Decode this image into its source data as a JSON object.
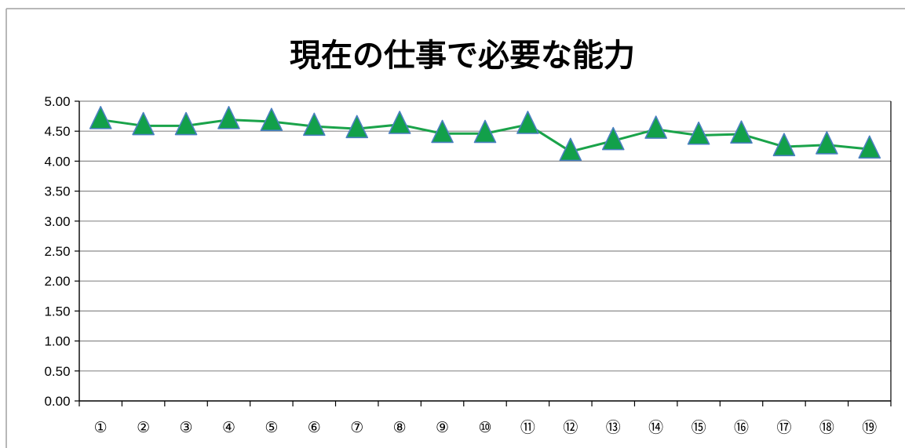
{
  "chart_data": {
    "type": "line",
    "title": "現在の仕事で必要な能力",
    "xlabel": "",
    "ylabel": "",
    "categories": [
      "①",
      "②",
      "③",
      "④",
      "⑤",
      "⑥",
      "⑦",
      "⑧",
      "⑨",
      "⑩",
      "⑪",
      "⑫",
      "⑬",
      "⑭",
      "⑮",
      "⑯",
      "⑰",
      "⑱",
      "⑲"
    ],
    "series": [
      {
        "values": [
          4.69,
          4.59,
          4.59,
          4.69,
          4.66,
          4.58,
          4.54,
          4.61,
          4.46,
          4.46,
          4.61,
          4.16,
          4.34,
          4.53,
          4.43,
          4.45,
          4.24,
          4.27,
          4.2
        ]
      }
    ],
    "y_tick_labels": [
      "0.00",
      "0.50",
      "1.00",
      "1.50",
      "2.00",
      "2.50",
      "3.00",
      "3.50",
      "4.00",
      "4.50",
      "5.00"
    ],
    "ylim": [
      0,
      5
    ],
    "y_step": 0.5,
    "grid": true,
    "legend": "none",
    "colors": {
      "line": "#1aa34a",
      "marker_fill": "#12a04a",
      "marker_stroke": "#4a7fc0",
      "grid": "#8c8c8c",
      "axis": "#000000",
      "frame": "#a0a0a0"
    }
  }
}
